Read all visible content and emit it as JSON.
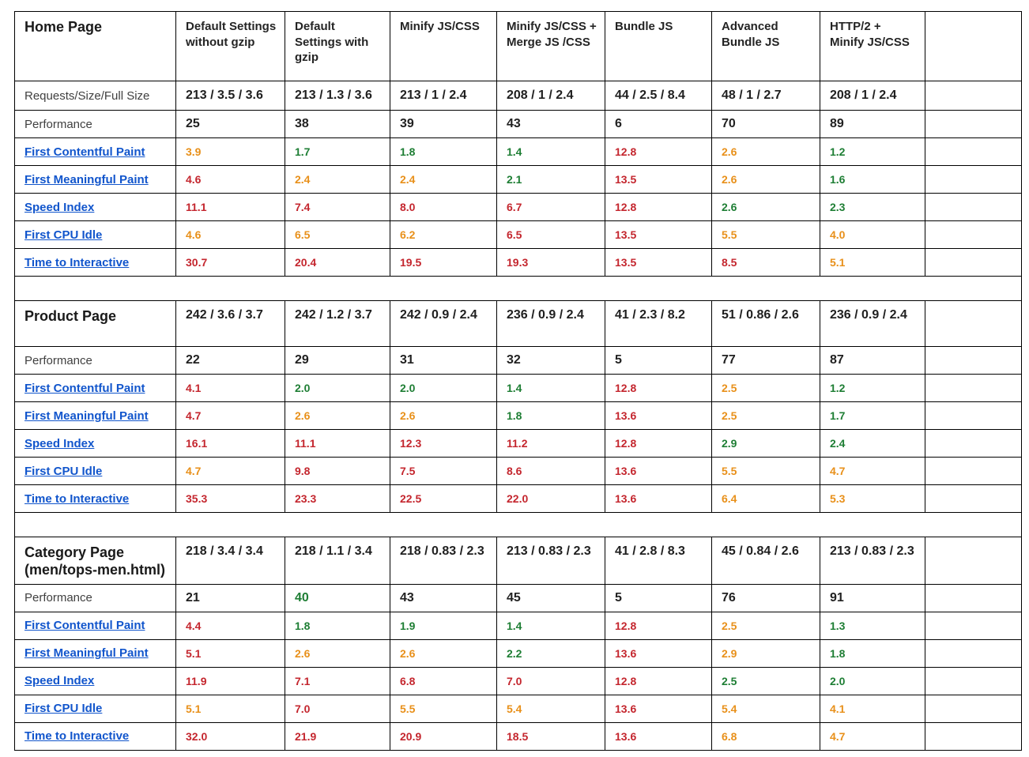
{
  "colors": {
    "dark": "#212121",
    "green": "#1e7e34",
    "orange": "#e8901a",
    "red": "#c4262e",
    "link_blue": "#1155cc",
    "label_gray": "#404040"
  },
  "columns": [
    "Default Settings without gzip",
    "Default Settings with gzip",
    "Minify JS/CSS",
    "Minify JS/CSS + Merge JS /CSS",
    "Bundle JS",
    "Advanced Bundle JS",
    "HTTP/2 + Minify JS/CSS"
  ],
  "sections": [
    {
      "title": "Home Page",
      "requests_label": "Requests/Size/Full Size",
      "requests_values": [
        "213 / 3.5 / 3.6",
        "213 / 1.3 / 3.6",
        "213 / 1 / 2.4",
        "208 / 1 / 2.4",
        "44 / 2.5 / 8.4",
        "48 / 1 / 2.7",
        "208 / 1 / 2.4"
      ],
      "performance_label": "Performance",
      "performance_values": [
        "25",
        "38",
        "39",
        "43",
        "6",
        "70",
        "89"
      ],
      "performance_colors": [
        "dark",
        "dark",
        "dark",
        "dark",
        "dark",
        "dark",
        "dark"
      ],
      "metrics": [
        {
          "label": "First Contentful Paint",
          "values": [
            "3.9",
            "1.7",
            "1.8",
            "1.4",
            "12.8",
            "2.6",
            "1.2"
          ],
          "colors": [
            "orange",
            "green",
            "green",
            "green",
            "red",
            "orange",
            "green"
          ]
        },
        {
          "label": "First Meaningful Paint",
          "values": [
            "4.6",
            "2.4",
            "2.4",
            "2.1",
            "13.5",
            "2.6",
            "1.6"
          ],
          "colors": [
            "red",
            "orange",
            "orange",
            "green",
            "red",
            "orange",
            "green"
          ]
        },
        {
          "label": "Speed Index",
          "values": [
            "11.1",
            "7.4",
            "8.0",
            "6.7",
            "12.8",
            "2.6",
            "2.3"
          ],
          "colors": [
            "red",
            "red",
            "red",
            "red",
            "red",
            "green",
            "green"
          ]
        },
        {
          "label": "First CPU Idle",
          "values": [
            "4.6",
            "6.5",
            "6.2",
            "6.5",
            "13.5",
            "5.5",
            "4.0"
          ],
          "colors": [
            "orange",
            "orange",
            "orange",
            "red",
            "red",
            "orange",
            "orange"
          ]
        },
        {
          "label": "Time to Interactive",
          "values": [
            "30.7",
            "20.4",
            "19.5",
            "19.3",
            "13.5",
            "8.5",
            "5.1"
          ],
          "colors": [
            "red",
            "red",
            "red",
            "red",
            "red",
            "red",
            "orange"
          ]
        }
      ]
    },
    {
      "title": "Product Page",
      "requests_label": "",
      "requests_values": [
        "242 / 3.6 / 3.7",
        "242 / 1.2 / 3.7",
        "242 / 0.9 / 2.4",
        "236 / 0.9 / 2.4",
        "41 / 2.3 / 8.2",
        "51 / 0.86 / 2.6",
        "236 / 0.9 / 2.4"
      ],
      "performance_label": "Performance",
      "performance_values": [
        "22",
        "29",
        "31",
        "32",
        "5",
        "77",
        "87"
      ],
      "performance_colors": [
        "dark",
        "dark",
        "dark",
        "dark",
        "dark",
        "dark",
        "dark"
      ],
      "metrics": [
        {
          "label": "First Contentful Paint",
          "values": [
            "4.1",
            "2.0",
            "2.0",
            "1.4",
            "12.8",
            "2.5",
            "1.2"
          ],
          "colors": [
            "red",
            "green",
            "green",
            "green",
            "red",
            "orange",
            "green"
          ]
        },
        {
          "label": "First Meaningful Paint",
          "values": [
            "4.7",
            "2.6",
            "2.6",
            "1.8",
            "13.6",
            "2.5",
            "1.7"
          ],
          "colors": [
            "red",
            "orange",
            "orange",
            "green",
            "red",
            "orange",
            "green"
          ]
        },
        {
          "label": "Speed Index",
          "values": [
            "16.1",
            "11.1",
            "12.3",
            "11.2",
            "12.8",
            "2.9",
            "2.4"
          ],
          "colors": [
            "red",
            "red",
            "red",
            "red",
            "red",
            "green",
            "green"
          ]
        },
        {
          "label": "First CPU Idle",
          "values": [
            "4.7",
            "9.8",
            "7.5",
            "8.6",
            "13.6",
            "5.5",
            "4.7"
          ],
          "colors": [
            "orange",
            "red",
            "red",
            "red",
            "red",
            "orange",
            "orange"
          ]
        },
        {
          "label": "Time to Interactive",
          "values": [
            "35.3",
            "23.3",
            "22.5",
            "22.0",
            "13.6",
            "6.4",
            "5.3"
          ],
          "colors": [
            "red",
            "red",
            "red",
            "red",
            "red",
            "orange",
            "orange"
          ]
        }
      ]
    },
    {
      "title": "Category Page (men/tops-men.html)",
      "requests_label": "",
      "requests_values": [
        "218 / 3.4 / 3.4",
        "218 / 1.1 / 3.4",
        "218 / 0.83 / 2.3",
        "213 / 0.83 / 2.3",
        "41 / 2.8 / 8.3",
        "45 / 0.84 / 2.6",
        "213 / 0.83 / 2.3"
      ],
      "performance_label": "Performance",
      "performance_values": [
        "21",
        "40",
        "43",
        "45",
        "5",
        "76",
        "91"
      ],
      "performance_colors": [
        "dark",
        "green",
        "dark",
        "dark",
        "dark",
        "dark",
        "dark"
      ],
      "metrics": [
        {
          "label": "First Contentful Paint",
          "values": [
            "4.4",
            "1.8",
            "1.9",
            "1.4",
            "12.8",
            "2.5",
            "1.3"
          ],
          "colors": [
            "red",
            "green",
            "green",
            "green",
            "red",
            "orange",
            "green"
          ]
        },
        {
          "label": "First Meaningful Paint",
          "values": [
            "5.1",
            "2.6",
            "2.6",
            "2.2",
            "13.6",
            "2.9",
            "1.8"
          ],
          "colors": [
            "red",
            "orange",
            "orange",
            "green",
            "red",
            "orange",
            "green"
          ]
        },
        {
          "label": "Speed Index",
          "values": [
            "11.9",
            "7.1",
            "6.8",
            "7.0",
            "12.8",
            "2.5",
            "2.0"
          ],
          "colors": [
            "red",
            "red",
            "red",
            "red",
            "red",
            "green",
            "green"
          ]
        },
        {
          "label": "First CPU Idle",
          "values": [
            "5.1",
            "7.0",
            "5.5",
            "5.4",
            "13.6",
            "5.4",
            "4.1"
          ],
          "colors": [
            "orange",
            "red",
            "orange",
            "orange",
            "red",
            "orange",
            "orange"
          ]
        },
        {
          "label": "Time to Interactive",
          "values": [
            "32.0",
            "21.9",
            "20.9",
            "18.5",
            "13.6",
            "6.8",
            "4.7"
          ],
          "colors": [
            "red",
            "red",
            "red",
            "red",
            "red",
            "orange",
            "orange"
          ]
        }
      ]
    }
  ]
}
